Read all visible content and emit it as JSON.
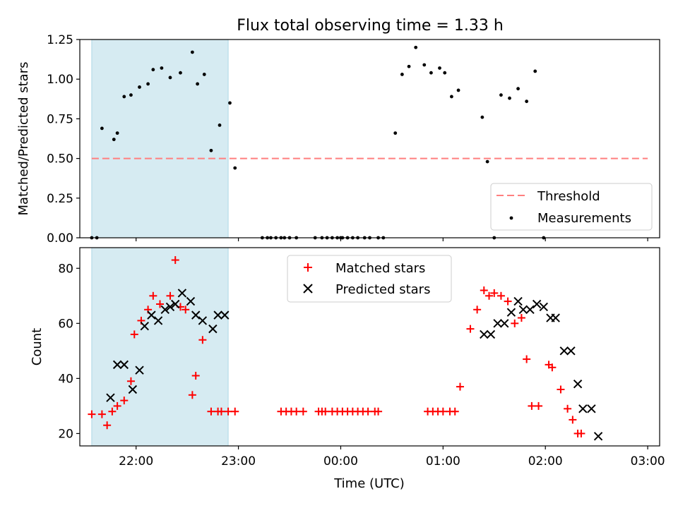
{
  "figure": {
    "title": "Flux total observing time = 1.33 h"
  },
  "chart_data": [
    {
      "type": "scatter",
      "panel": "top",
      "xlabel": "",
      "ylabel": "Matched/Predicted stars",
      "xlim": [
        "21:27",
        "03:07"
      ],
      "ylim": [
        0.0,
        1.25
      ],
      "yticks": [
        0.0,
        0.25,
        0.5,
        0.75,
        1.0,
        1.25
      ],
      "ytick_labels": [
        "0.00",
        "0.25",
        "0.50",
        "0.75",
        "1.00",
        "1.25"
      ],
      "xticks": [
        "22:00",
        "23:00",
        "00:00",
        "01:00",
        "02:00",
        "03:00"
      ],
      "highlight_span": {
        "start": "21:34",
        "end": "22:54",
        "color": "#add8e6"
      },
      "legend": {
        "placement": "lower right",
        "entries": [
          {
            "label": "Threshold",
            "style": "dashed-line",
            "color": "#ff7f7f"
          },
          {
            "label": "Measurements",
            "style": "dot",
            "color": "#000000"
          }
        ]
      },
      "threshold": {
        "name": "Threshold",
        "value": 0.5,
        "x_start": "21:34",
        "x_end": "03:00",
        "color": "#ff7f7f"
      },
      "series": [
        {
          "name": "Measurements",
          "color": "#000000",
          "marker": "dot",
          "x": [
            "21:34",
            "21:37",
            "21:40",
            "21:47",
            "21:49",
            "21:53",
            "21:57",
            "22:02",
            "22:07",
            "22:10",
            "22:15",
            "22:20",
            "22:26",
            "22:33",
            "22:36",
            "22:40",
            "22:44",
            "22:49",
            "22:55",
            "22:58",
            "23:02",
            "23:14",
            "23:17",
            "23:19",
            "23:22",
            "23:25",
            "23:27",
            "23:30",
            "23:34",
            "23:45",
            "23:49",
            "23:52",
            "23:55",
            "23:58",
            "00:00",
            "00:01",
            "00:04",
            "00:07",
            "00:10",
            "00:14",
            "00:17",
            "00:22",
            "00:25",
            "00:32",
            "00:36",
            "00:40",
            "00:44",
            "00:49",
            "00:53",
            "00:58",
            "01:01",
            "01:05",
            "01:09",
            "01:23",
            "01:26",
            "01:30",
            "01:34",
            "01:39",
            "01:44",
            "01:49",
            "01:54",
            "01:59",
            "02:04",
            "02:09",
            "02:13",
            "02:17",
            "02:24",
            "02:28",
            "02:33",
            "02:38",
            "02:43",
            "02:48",
            "02:56",
            "02:59"
          ],
          "y": [
            0.0,
            0.0,
            0.69,
            0.62,
            0.66,
            0.89,
            0.9,
            0.95,
            0.97,
            1.06,
            1.07,
            1.01,
            1.04,
            1.17,
            0.97,
            1.03,
            0.55,
            0.71,
            0.85,
            0.44,
            null,
            0.0,
            0.0,
            0.0,
            0.0,
            0.0,
            0.0,
            0.0,
            0.0,
            0.0,
            0.0,
            0.0,
            0.0,
            0.0,
            0.0,
            0.0,
            0.0,
            0.0,
            0.0,
            0.0,
            0.0,
            0.0,
            0.0,
            0.66,
            1.03,
            1.08,
            1.2,
            1.09,
            1.04,
            1.07,
            1.04,
            0.89,
            0.93,
            0.76,
            0.48,
            0.0,
            0.9,
            0.88,
            0.94,
            0.86,
            1.05,
            0.0,
            null,
            null,
            null,
            null,
            null,
            null,
            null,
            null,
            null,
            null,
            null,
            null
          ]
        }
      ]
    },
    {
      "type": "scatter",
      "panel": "bottom",
      "xlabel": "Time (UTC)",
      "ylabel": "Count",
      "xlim": [
        "21:27",
        "03:07"
      ],
      "ylim": [
        15.5,
        87.5
      ],
      "yticks": [
        20,
        40,
        60,
        80
      ],
      "ytick_labels": [
        "20",
        "40",
        "60",
        "80"
      ],
      "xticks": [
        "22:00",
        "23:00",
        "00:00",
        "01:00",
        "02:00",
        "03:00"
      ],
      "highlight_span": {
        "start": "21:34",
        "end": "22:54",
        "color": "#add8e6"
      },
      "legend": {
        "placement": "upper center",
        "entries": [
          {
            "label": "Matched stars",
            "style": "plus",
            "color": "#ff0000"
          },
          {
            "label": "Predicted stars",
            "style": "x",
            "color": "#000000"
          }
        ]
      },
      "series": [
        {
          "name": "Matched stars",
          "color": "#ff0000",
          "marker": "plus",
          "x": [
            "21:34",
            "21:40",
            "21:43",
            "21:46",
            "21:49",
            "21:53",
            "21:57",
            "21:59",
            "22:03",
            "22:07",
            "22:10",
            "22:14",
            "22:20",
            "22:23",
            "22:26",
            "22:29",
            "22:33",
            "22:35",
            "22:39",
            "22:44",
            "22:45",
            "22:48",
            "22:50",
            "22:54",
            "22:58",
            "23:25",
            "23:28",
            "23:31",
            "23:34",
            "23:38",
            "23:47",
            "23:49",
            "23:51",
            "23:55",
            "23:58",
            "00:01",
            "00:04",
            "00:07",
            "00:10",
            "00:13",
            "00:16",
            "00:20",
            "00:22",
            "00:51",
            "00:54",
            "00:57",
            "01:00",
            "01:04",
            "01:07",
            "01:10",
            "01:16",
            "01:20",
            "01:24",
            "01:27",
            "01:30",
            "01:34",
            "01:38",
            "01:42",
            "01:46",
            "01:49",
            "01:52",
            "01:56",
            "02:02",
            "02:04",
            "02:09",
            "02:13",
            "02:16",
            "02:19",
            "02:21",
            "02:25",
            "02:28",
            "02:33",
            "02:34",
            "02:38",
            "02:43",
            "02:46",
            "02:49"
          ],
          "y": [
            27,
            27,
            23,
            28,
            30,
            32,
            39,
            56,
            61,
            65,
            70,
            67,
            70,
            83,
            66,
            65,
            34,
            41,
            54,
            28,
            null,
            28,
            28,
            28,
            28,
            28,
            28,
            28,
            28,
            28,
            28,
            28,
            28,
            28,
            28,
            28,
            28,
            28,
            28,
            28,
            28,
            28,
            28,
            28,
            28,
            28,
            28,
            28,
            28,
            37,
            58,
            65,
            72,
            70,
            71,
            70,
            68,
            60,
            62,
            47,
            30,
            30,
            45,
            44,
            36,
            29,
            25,
            20,
            20,
            null,
            null,
            null,
            null,
            null,
            null,
            null,
            null
          ]
        },
        {
          "name": "Predicted stars",
          "color": "#000000",
          "marker": "x",
          "x": [
            "21:45",
            "21:49",
            "21:53",
            "21:58",
            "22:02",
            "22:05",
            "22:09",
            "22:13",
            "22:17",
            "22:20",
            "22:23",
            "22:27",
            "22:32",
            "22:35",
            "22:39",
            "22:45",
            "22:48",
            "22:52",
            "22:56",
            "01:24",
            "01:28",
            "01:32",
            "01:36",
            "01:40",
            "01:44",
            "01:47",
            "01:51",
            "01:55",
            "01:59",
            "02:03",
            "02:06",
            "02:11",
            "02:15",
            "02:19",
            "02:22",
            "02:27",
            "02:31",
            "02:36",
            "02:40",
            "02:45"
          ],
          "y": [
            33,
            45,
            45,
            36,
            43,
            59,
            63,
            61,
            65,
            66,
            67,
            71,
            68,
            63,
            61,
            58,
            63,
            63,
            null,
            56,
            56,
            60,
            60,
            64,
            68,
            65,
            65,
            67,
            66,
            62,
            62,
            50,
            50,
            38,
            29,
            29,
            19,
            null,
            null,
            null
          ]
        }
      ]
    }
  ]
}
